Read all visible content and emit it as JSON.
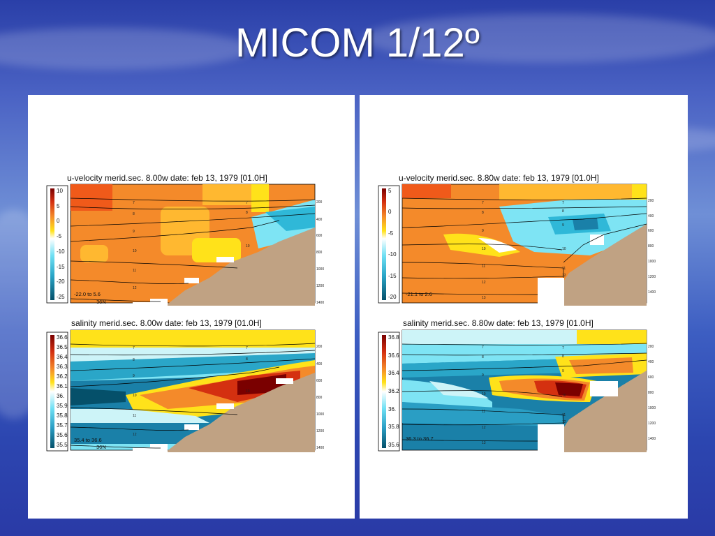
{
  "slide": {
    "title": "MICOM 1/12º"
  },
  "chart_data": [
    {
      "type": "heatmap",
      "title": "u-velocity merid.sec.  8.00w   date: feb 13, 1979   [01.0H]",
      "colorbar_ticks": [
        "10",
        "5",
        "0",
        "-5",
        "-10",
        "-15",
        "-20",
        "-25"
      ],
      "range_note": "-22.0 to   5.6",
      "lat_label": "36N",
      "depth_ticks": [
        "200",
        "400",
        "600",
        "800",
        "1000",
        "1200",
        "1400"
      ],
      "layer_labels": [
        "7",
        "8",
        "9",
        "10",
        "11",
        "12"
      ],
      "colors": {
        "orange": "#f48a2a",
        "yellow": "#ffe21a",
        "cyan": "#7ee4f4",
        "topo": "#c0a283"
      }
    },
    {
      "type": "heatmap",
      "title": "u-velocity merid.sec.  8.80w   date: feb 13, 1979   [01.0H]",
      "colorbar_ticks": [
        "5",
        "0",
        "-5",
        "-10",
        "-15",
        "-20"
      ],
      "range_note": "-21.1 to   2.6",
      "lat_label": "",
      "depth_ticks": [
        "200",
        "400",
        "600",
        "800",
        "1000",
        "1200",
        "1400"
      ],
      "layer_labels": [
        "7",
        "8",
        "9",
        "10",
        "11",
        "12",
        "13"
      ]
    },
    {
      "type": "heatmap",
      "title": "salinity merid.sec.  8.00w   date: feb 13, 1979   [01.0H]",
      "colorbar_ticks": [
        "36.6",
        "36.5",
        "36.4",
        "36.3",
        "36.2",
        "36.1",
        "36.",
        "35.9",
        "35.8",
        "35.7",
        "35.6",
        "35.5"
      ],
      "range_note": "35.4 to  36.6",
      "lat_label": "36N",
      "depth_ticks": [
        "200",
        "400",
        "600",
        "800",
        "1000",
        "1200",
        "1400"
      ],
      "layer_labels": [
        "7",
        "8",
        "9",
        "10",
        "11",
        "12"
      ]
    },
    {
      "type": "heatmap",
      "title": "salinity merid.sec.  8.80w   date: feb 13, 1979   [01.0H]",
      "colorbar_ticks": [
        "36.8",
        "36.6",
        "36.4",
        "36.2",
        "36.",
        "35.8",
        "35.6"
      ],
      "range_note": "36.3 to  36.7",
      "lat_label": "",
      "depth_ticks": [
        "200",
        "400",
        "600",
        "800",
        "1000",
        "1200",
        "1400"
      ],
      "layer_labels": [
        "7",
        "8",
        "9",
        "10",
        "11",
        "12",
        "13"
      ]
    }
  ]
}
